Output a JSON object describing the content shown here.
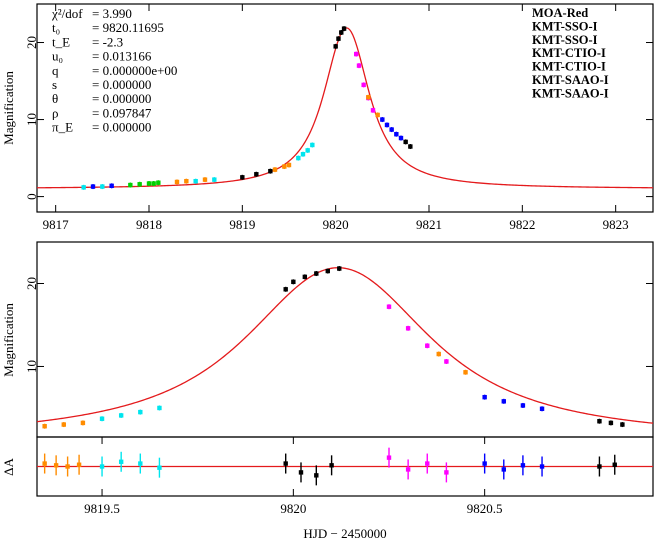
{
  "colors": {
    "model": "#e41a1c",
    "MOA-Red": "#000000",
    "KMT-SSO-I": "#ff0000",
    "KMT-SSO-I-2": "#00d000",
    "KMT-CTIO-I": "#0000ff",
    "KMT-CTIO-I-2": "#00e5ee",
    "KMT-SAAO-I": "#ff00ff",
    "KMT-SAAO-I-2": "#ff8c00"
  },
  "params": [
    {
      "label": "χ²/dof",
      "value": "= 3.990"
    },
    {
      "label": "t₀",
      "value": "= 9820.11695"
    },
    {
      "label": "t_E",
      "value": "= -2.3"
    },
    {
      "label": "u₀",
      "value": "= 0.013166"
    },
    {
      "label": "q",
      "value": "= 0.000000e+00"
    },
    {
      "label": "s",
      "value": "= 0.000000"
    },
    {
      "label": "θ",
      "value": "= 0.000000"
    },
    {
      "label": "ρ",
      "value": "= 0.097847"
    },
    {
      "label": "π_E",
      "value": "= 0.000000"
    }
  ],
  "legend": [
    {
      "name": "MOA-Red",
      "color": "#000000"
    },
    {
      "name": "KMT-SSO-I",
      "color": "#ff0000"
    },
    {
      "name": "KMT-SSO-I",
      "color": "#00d000"
    },
    {
      "name": "KMT-CTIO-I",
      "color": "#0000ff"
    },
    {
      "name": "KMT-CTIO-I",
      "color": "#00e5ee"
    },
    {
      "name": "KMT-SAAO-I",
      "color": "#ff00ff"
    },
    {
      "name": "KMT-SAAO-I",
      "color": "#ff8c00"
    }
  ],
  "chart_data": [
    {
      "type": "scatter",
      "panel": "full",
      "ylabel": "Magnification",
      "xlim": [
        9816.8,
        9823.4
      ],
      "ylim": [
        -2,
        25
      ],
      "xticks": [
        9817,
        9818,
        9819,
        9820,
        9821,
        9822,
        9823
      ],
      "yticks": [
        0,
        10,
        20
      ],
      "model": {
        "t0": 9820.11695,
        "peak": 21.9,
        "width": 0.22
      },
      "series": [
        {
          "color_key": "MOA-Red",
          "x": [
            9819.0,
            9819.15,
            9819.3,
            9820.0,
            9820.03,
            9820.06,
            9820.09,
            9820.75,
            9820.8
          ],
          "y": [
            2.5,
            2.9,
            3.3,
            19.5,
            20.5,
            21.3,
            21.8,
            7.1,
            6.5
          ]
        },
        {
          "color_key": "KMT-SSO-I-2",
          "x": [
            9817.8,
            9817.9,
            9818.0,
            9818.05,
            9818.1
          ],
          "y": [
            1.5,
            1.6,
            1.7,
            1.7,
            1.8
          ]
        },
        {
          "color_key": "KMT-CTIO-I",
          "x": [
            9817.4,
            9817.6,
            9820.5,
            9820.55,
            9820.6,
            9820.65,
            9820.7
          ],
          "y": [
            1.3,
            1.4,
            10.0,
            9.3,
            8.7,
            8.1,
            7.6
          ]
        },
        {
          "color_key": "KMT-CTIO-I-2",
          "x": [
            9817.3,
            9817.5,
            9818.5,
            9818.7,
            9819.6,
            9819.65,
            9819.7,
            9819.75
          ],
          "y": [
            1.2,
            1.3,
            2.0,
            2.2,
            5.0,
            5.5,
            6.0,
            6.7
          ]
        },
        {
          "color_key": "KMT-SAAO-I",
          "x": [
            9820.22,
            9820.25,
            9820.3,
            9820.35,
            9820.4
          ],
          "y": [
            18.5,
            17.0,
            14.5,
            12.8,
            11.2
          ]
        },
        {
          "color_key": "KMT-SAAO-I-2",
          "x": [
            9818.3,
            9818.4,
            9818.6,
            9819.35,
            9819.45,
            9819.5,
            9820.35,
            9820.45
          ],
          "y": [
            1.9,
            2.0,
            2.2,
            3.5,
            3.9,
            4.1,
            12.9,
            10.6
          ]
        }
      ]
    },
    {
      "type": "scatter",
      "panel": "zoom",
      "ylabel": "Magnification",
      "xlim": [
        9819.33,
        9820.94
      ],
      "ylim": [
        1.5,
        25
      ],
      "yticks": [
        10,
        20
      ],
      "model": {
        "t0": 9820.11695,
        "peak": 21.9,
        "width": 0.22
      },
      "series": [
        {
          "color_key": "MOA-Red",
          "x": [
            9819.98,
            9820.0,
            9820.03,
            9820.06,
            9820.09,
            9820.12,
            9820.8,
            9820.83,
            9820.86
          ],
          "y": [
            19.3,
            20.2,
            20.8,
            21.2,
            21.5,
            21.8,
            3.4,
            3.2,
            3.0
          ]
        },
        {
          "color_key": "KMT-CTIO-I",
          "x": [
            9820.5,
            9820.55,
            9820.6,
            9820.65
          ],
          "y": [
            6.3,
            5.8,
            5.3,
            4.9
          ]
        },
        {
          "color_key": "KMT-CTIO-I-2",
          "x": [
            9819.5,
            9819.55,
            9819.6,
            9819.65
          ],
          "y": [
            3.7,
            4.1,
            4.5,
            5.0
          ]
        },
        {
          "color_key": "KMT-SAAO-I",
          "x": [
            9820.25,
            9820.3,
            9820.35,
            9820.4
          ],
          "y": [
            17.2,
            14.6,
            12.5,
            10.6
          ]
        },
        {
          "color_key": "KMT-SAAO-I-2",
          "x": [
            9819.35,
            9819.4,
            9819.45,
            9820.38,
            9820.45
          ],
          "y": [
            2.8,
            3.0,
            3.2,
            11.5,
            9.3
          ]
        }
      ]
    },
    {
      "type": "scatter",
      "panel": "residuals",
      "ylabel": "ΔA",
      "xlim": [
        9819.33,
        9820.94
      ],
      "ylim": [
        -0.5,
        0.5
      ],
      "xticks": [
        9819.5,
        9820,
        9820.5
      ],
      "series": [
        {
          "color_key": "KMT-SAAO-I-2",
          "x": [
            9819.35,
            9819.38,
            9819.41,
            9819.44
          ],
          "y": [
            0.05,
            0.02,
            0.0,
            0.03
          ]
        },
        {
          "color_key": "KMT-CTIO-I-2",
          "x": [
            9819.5,
            9819.55,
            9819.6,
            9819.65
          ],
          "y": [
            0.0,
            0.08,
            0.05,
            -0.02
          ]
        },
        {
          "color_key": "MOA-Red",
          "x": [
            9819.98,
            9820.02,
            9820.06,
            9820.1,
            9820.8,
            9820.84
          ],
          "y": [
            0.05,
            -0.1,
            -0.15,
            0.02,
            0.0,
            0.03
          ]
        },
        {
          "color_key": "KMT-SAAO-I",
          "x": [
            9820.25,
            9820.3,
            9820.35,
            9820.4
          ],
          "y": [
            0.15,
            -0.05,
            0.05,
            -0.1
          ]
        },
        {
          "color_key": "KMT-CTIO-I",
          "x": [
            9820.5,
            9820.55,
            9820.6,
            9820.65
          ],
          "y": [
            0.05,
            -0.05,
            0.02,
            0.0
          ]
        }
      ]
    }
  ],
  "xlabel": "HJD − 2450000"
}
